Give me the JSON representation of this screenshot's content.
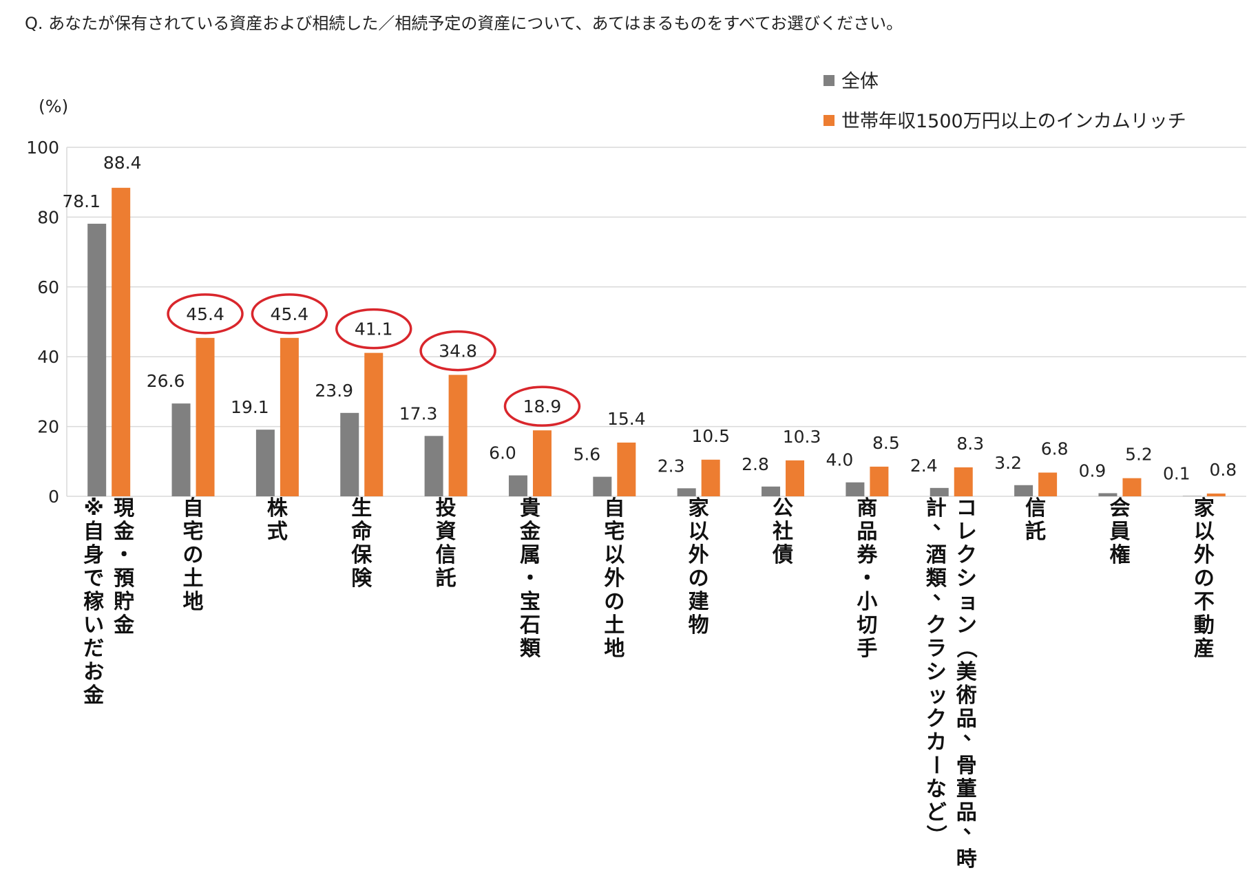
{
  "question": "Q. あなたが保有されている資産および相続した／相続予定の資産について、あてはまるものをすべてお選びください。",
  "chart_data": {
    "type": "bar",
    "unit_label": "(%)",
    "ylim": [
      0,
      100
    ],
    "yticks": [
      0,
      20,
      40,
      60,
      80,
      100
    ],
    "grid": true,
    "legend_position": "top-right",
    "categories": [
      "現金・預貯金",
      "自宅の土地",
      "株式",
      "生命保険",
      "投資信託",
      "貴金属・宝石類",
      "自宅以外の土地",
      "家以外の建物",
      "公社債",
      "商品券・小切手",
      "コレクション（美術品、骨董品、時計、酒類、クラシックカーなど）",
      "信託",
      "会員権",
      "家以外の不動産"
    ],
    "category_notes": [
      "※自身で稼いだお金",
      "",
      "",
      "",
      "",
      "",
      "",
      "",
      "",
      "",
      "",
      "",
      "",
      ""
    ],
    "series": [
      {
        "name": "全体",
        "color": "#808080",
        "values": [
          78.1,
          26.6,
          19.1,
          23.9,
          17.3,
          6.0,
          5.6,
          2.3,
          2.8,
          4.0,
          2.4,
          3.2,
          0.9,
          0.1
        ]
      },
      {
        "name": "世帯年収1500万円以上のインカムリッチ",
        "color": "#ED7D31",
        "values": [
          88.4,
          45.4,
          45.4,
          41.1,
          34.8,
          18.9,
          15.4,
          10.5,
          10.3,
          8.5,
          8.3,
          6.8,
          5.2,
          0.8
        ]
      }
    ],
    "annotations": {
      "circle_color": "#D9262C",
      "circled_series": "世帯年収1500万円以上のインカムリッチ",
      "circled_categories": [
        "自宅の土地",
        "株式",
        "生命保険",
        "投資信託",
        "貴金属・宝石類"
      ]
    }
  }
}
